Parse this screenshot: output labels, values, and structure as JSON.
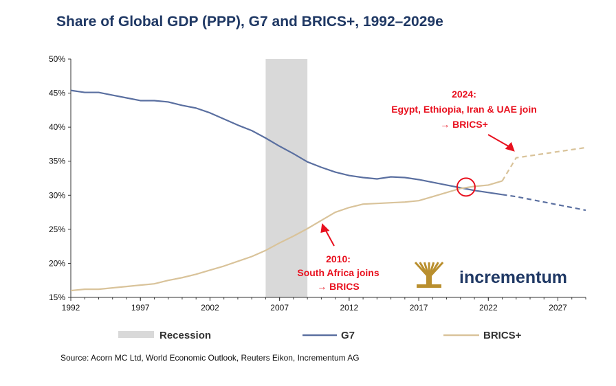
{
  "title": "Share of Global GDP (PPP), G7 and BRICS+, 1992–2029e",
  "source": "Source: Acorn MC Ltd, World Economic Outlook, Reuters Eikon, Incrementum AG",
  "logo_text": "incrementum",
  "colors": {
    "title": "#1F3864",
    "g7": "#5A6FA0",
    "brics": "#D9C39A",
    "recession": "#D9D9D9",
    "annotation": "#E8101E",
    "logo": "#1F3864",
    "logo_tree": "#B98F2E"
  },
  "legend": [
    {
      "label": "Recession"
    },
    {
      "label": "G7"
    },
    {
      "label": "BRICS+"
    }
  ],
  "annotations": [
    {
      "lines": [
        "2024:",
        "Egypt, Ethiopia, Iran & UAE join",
        "→ BRICS+"
      ],
      "point": [
        2024,
        35.7
      ]
    },
    {
      "lines": [
        "2010:",
        "South Africa joins",
        "→ BRICS"
      ],
      "point": [
        2010,
        26.3
      ]
    }
  ],
  "chart_data": {
    "type": "line",
    "title": "Share of Global GDP (PPP), G7 and BRICS+, 1992–2029e",
    "xlim": [
      1992,
      2029
    ],
    "ylim": [
      15,
      50
    ],
    "x_ticks": [
      1992,
      1997,
      2002,
      2007,
      2012,
      2017,
      2022,
      2027
    ],
    "x_tick_labels": [
      "1992",
      "1997",
      "2002",
      "2007",
      "2012",
      "2017",
      "2022",
      "2027"
    ],
    "y_ticks": [
      15,
      20,
      25,
      30,
      35,
      40,
      45,
      50
    ],
    "y_tick_labels": [
      "15%",
      "20%",
      "25%",
      "30%",
      "35%",
      "40%",
      "45%",
      "50%"
    ],
    "grid": false,
    "legend_position": "bottom",
    "recession": {
      "label": "Recession",
      "start": 2006,
      "end": 2009
    },
    "series": [
      {
        "name": "G7",
        "color": "#5A6FA0",
        "x": [
          1992,
          1993,
          1994,
          1995,
          1996,
          1997,
          1998,
          1999,
          2000,
          2001,
          2002,
          2003,
          2004,
          2005,
          2006,
          2007,
          2008,
          2009,
          2010,
          2011,
          2012,
          2013,
          2014,
          2015,
          2016,
          2017,
          2018,
          2019,
          2020,
          2021,
          2022,
          2023
        ],
        "values": [
          45.4,
          45.1,
          45.1,
          44.7,
          44.3,
          43.9,
          43.9,
          43.7,
          43.2,
          42.8,
          42.1,
          41.2,
          40.3,
          39.5,
          38.4,
          37.2,
          36.1,
          34.9,
          34.1,
          33.4,
          32.9,
          32.6,
          32.4,
          32.7,
          32.6,
          32.3,
          31.9,
          31.5,
          31.1,
          30.7,
          30.4,
          30.1
        ],
        "forecast_x": [
          2023,
          2024,
          2025,
          2026,
          2027,
          2028,
          2029
        ],
        "forecast_values": [
          30.1,
          29.8,
          29.4,
          29.0,
          28.6,
          28.2,
          27.8
        ]
      },
      {
        "name": "BRICS+",
        "color": "#D9C39A",
        "x": [
          1992,
          1993,
          1994,
          1995,
          1996,
          1997,
          1998,
          1999,
          2000,
          2001,
          2002,
          2003,
          2004,
          2005,
          2006,
          2007,
          2008,
          2009,
          2010,
          2011,
          2012,
          2013,
          2014,
          2015,
          2016,
          2017,
          2018,
          2019,
          2020,
          2021,
          2022,
          2023
        ],
        "values": [
          16.0,
          16.2,
          16.2,
          16.4,
          16.6,
          16.8,
          17.0,
          17.5,
          17.9,
          18.4,
          19.0,
          19.6,
          20.3,
          21.0,
          21.9,
          23.0,
          24.0,
          25.1,
          26.3,
          27.5,
          28.2,
          28.7,
          28.8,
          28.9,
          29.0,
          29.2,
          29.8,
          30.4,
          31.0,
          31.3,
          31.5,
          32.1
        ],
        "forecast_x": [
          2023,
          2024,
          2025,
          2026,
          2027,
          2028,
          2029
        ],
        "forecast_values": [
          32.1,
          35.5,
          35.8,
          36.1,
          36.4,
          36.7,
          37.0
        ]
      }
    ]
  }
}
